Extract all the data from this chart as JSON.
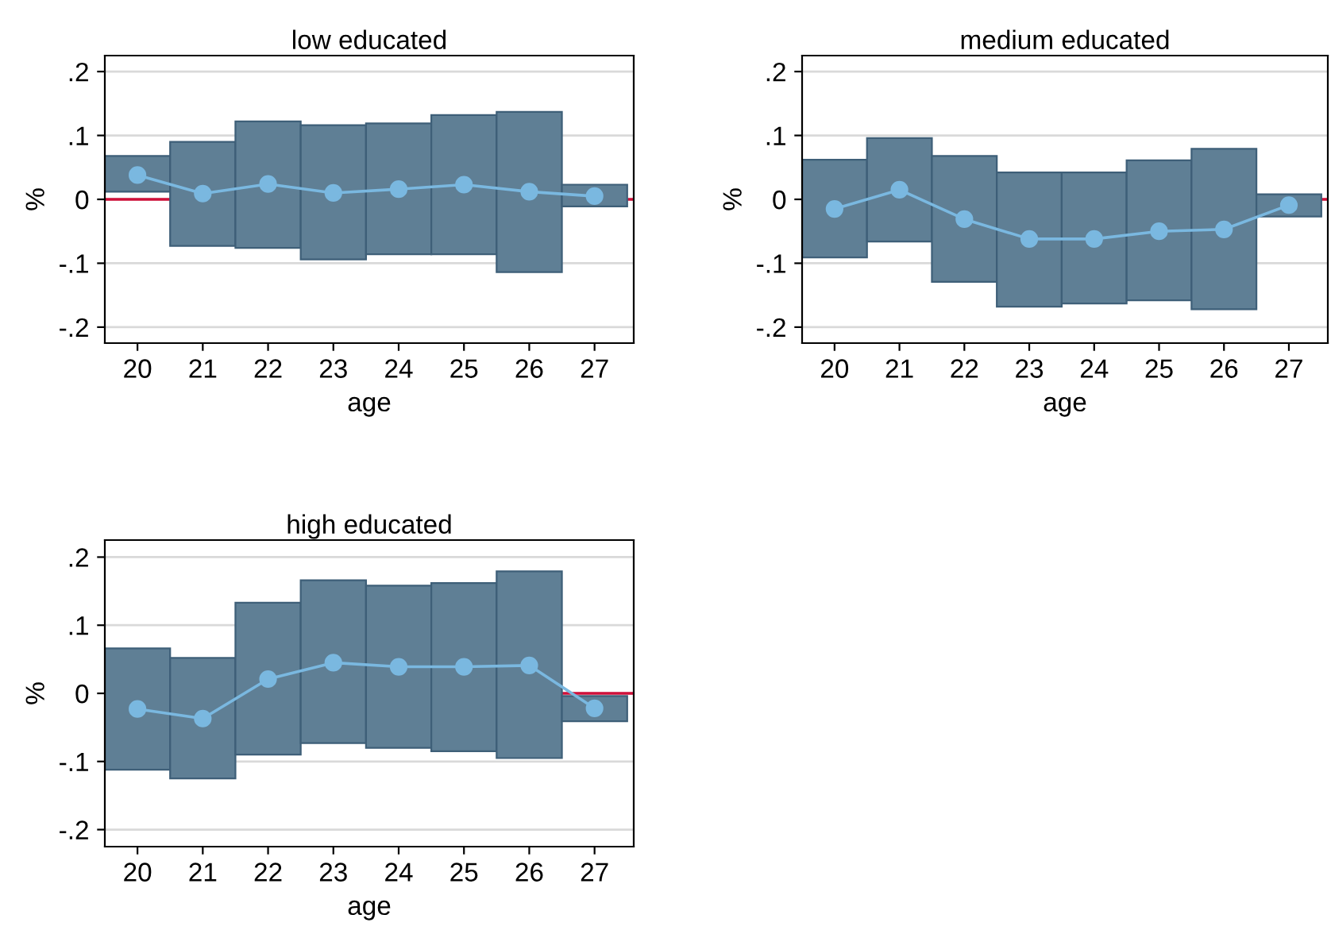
{
  "chart_data": [
    {
      "type": "bar",
      "title": "low educated",
      "xlabel": "age",
      "ylabel": "%",
      "x": [
        20,
        21,
        22,
        23,
        24,
        25,
        26,
        27
      ],
      "xlim": [
        19.5,
        27.6
      ],
      "xticks": [
        20,
        21,
        22,
        23,
        24,
        25,
        26,
        27
      ],
      "ylim": [
        -0.225,
        0.225
      ],
      "yticks": [
        {
          "value": -0.2,
          "label": "-.2"
        },
        {
          "value": -0.1,
          "label": "-.1"
        },
        0,
        {
          "value": 0.1,
          "label": ".1"
        },
        {
          "value": 0.2,
          "label": ".2"
        }
      ],
      "grid": "y",
      "ref_lines": [
        {
          "axis": "y",
          "value": 0,
          "color": "#d0103a"
        }
      ],
      "series": [
        {
          "color": "#5f7f95",
          "base": [
            0.012,
            -0.073,
            -0.076,
            -0.094,
            -0.086,
            -0.086,
            -0.114,
            -0.011
          ],
          "values": [
            0.056,
            0.163,
            0.198,
            0.21,
            0.205,
            0.218,
            0.251,
            0.034
          ]
        },
        {
          "type": "line",
          "color": "#7ab8e0",
          "marker": "circle",
          "values": [
            0.038,
            0.009,
            0.024,
            0.01,
            0.016,
            0.023,
            0.012,
            0.005
          ]
        }
      ]
    },
    {
      "type": "bar",
      "title": "medium educated",
      "xlabel": "age",
      "ylabel": "%",
      "x": [
        20,
        21,
        22,
        23,
        24,
        25,
        26,
        27
      ],
      "xlim": [
        19.5,
        27.6
      ],
      "xticks": [
        20,
        21,
        22,
        23,
        24,
        25,
        26,
        27
      ],
      "ylim": [
        -0.225,
        0.225
      ],
      "yticks": [
        {
          "value": -0.2,
          "label": "-.2"
        },
        {
          "value": -0.1,
          "label": "-.1"
        },
        0,
        {
          "value": 0.1,
          "label": ".1"
        },
        {
          "value": 0.2,
          "label": ".2"
        }
      ],
      "grid": "y",
      "ref_lines": [
        {
          "axis": "y",
          "value": 0,
          "color": "#d0103a"
        }
      ],
      "series": [
        {
          "color": "#5f7f95",
          "base": [
            -0.091,
            -0.066,
            -0.129,
            -0.168,
            -0.163,
            -0.158,
            -0.172,
            -0.027
          ],
          "values": [
            0.153,
            0.162,
            0.197,
            0.21,
            0.205,
            0.219,
            0.251,
            0.035
          ]
        },
        {
          "type": "line",
          "color": "#7ab8e0",
          "marker": "circle",
          "values": [
            -0.015,
            0.015,
            -0.031,
            -0.062,
            -0.062,
            -0.05,
            -0.047,
            -0.009
          ]
        }
      ]
    },
    {
      "type": "bar",
      "title": "high educated",
      "xlabel": "age",
      "ylabel": "%",
      "x": [
        20,
        21,
        22,
        23,
        24,
        25,
        26,
        27
      ],
      "xlim": [
        19.5,
        27.6
      ],
      "xticks": [
        20,
        21,
        22,
        23,
        24,
        25,
        26,
        27
      ],
      "ylim": [
        -0.225,
        0.225
      ],
      "yticks": [
        {
          "value": -0.2,
          "label": "-.2"
        },
        {
          "value": -0.1,
          "label": "-.1"
        },
        0,
        {
          "value": 0.1,
          "label": ".1"
        },
        {
          "value": 0.2,
          "label": ".2"
        }
      ],
      "grid": "y",
      "ref_lines": [
        {
          "axis": "y",
          "value": 0,
          "color": "#d0103a"
        }
      ],
      "series": [
        {
          "color": "#5f7f95",
          "base": [
            -0.112,
            -0.125,
            -0.09,
            -0.073,
            -0.08,
            -0.085,
            -0.095,
            -0.041
          ],
          "values": [
            0.178,
            0.177,
            0.223,
            0.239,
            0.238,
            0.247,
            0.274,
            0.037
          ]
        },
        {
          "type": "line",
          "color": "#7ab8e0",
          "marker": "circle",
          "values": [
            -0.023,
            -0.037,
            0.021,
            0.045,
            0.039,
            0.039,
            0.041,
            -0.022
          ]
        }
      ]
    }
  ]
}
